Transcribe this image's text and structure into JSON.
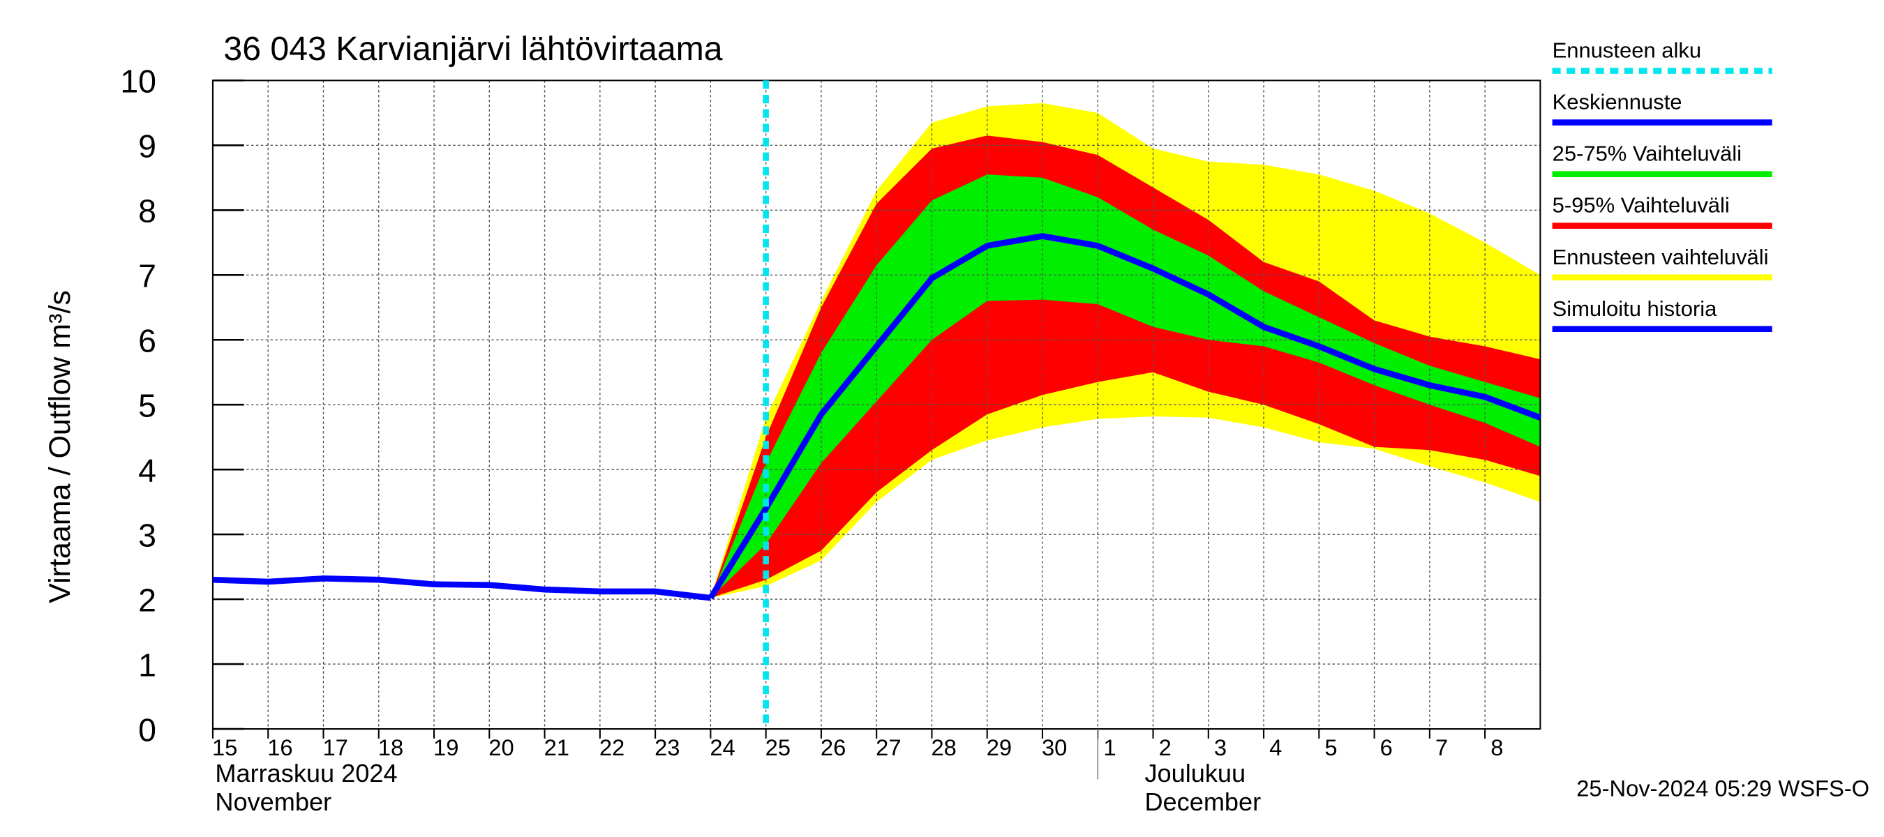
{
  "chart_data": {
    "type": "line",
    "title": "36 043 Karvianjärvi lähtövirtaama",
    "y_label": "Virtaama / Outflow   m³/s",
    "footer": "25-Nov-2024 05:29 WSFS-O",
    "month_labels": [
      {
        "x": "2024-11-15",
        "lines": [
          "Marraskuu 2024",
          "November"
        ]
      },
      {
        "x": "2024-12-02",
        "lines": [
          "Joulukuu",
          "December"
        ]
      }
    ],
    "x": [
      "2024-11-15",
      "2024-11-16",
      "2024-11-17",
      "2024-11-18",
      "2024-11-19",
      "2024-11-20",
      "2024-11-21",
      "2024-11-22",
      "2024-11-23",
      "2024-11-24",
      "2024-11-25",
      "2024-11-26",
      "2024-11-27",
      "2024-11-28",
      "2024-11-29",
      "2024-11-30",
      "2024-12-01",
      "2024-12-02",
      "2024-12-03",
      "2024-12-04",
      "2024-12-05",
      "2024-12-06",
      "2024-12-07",
      "2024-12-08",
      "2024-12-09"
    ],
    "xlim": [
      "2024-11-15",
      "2024-12-09"
    ],
    "xticks": [
      {
        "value": "2024-11-15",
        "label": "15"
      },
      {
        "value": "2024-11-16",
        "label": "16"
      },
      {
        "value": "2024-11-17",
        "label": "17"
      },
      {
        "value": "2024-11-18",
        "label": "18"
      },
      {
        "value": "2024-11-19",
        "label": "19"
      },
      {
        "value": "2024-11-20",
        "label": "20"
      },
      {
        "value": "2024-11-21",
        "label": "21"
      },
      {
        "value": "2024-11-22",
        "label": "22"
      },
      {
        "value": "2024-11-23",
        "label": "23"
      },
      {
        "value": "2024-11-24",
        "label": "24"
      },
      {
        "value": "2024-11-25",
        "label": "25"
      },
      {
        "value": "2024-11-26",
        "label": "26"
      },
      {
        "value": "2024-11-27",
        "label": "27"
      },
      {
        "value": "2024-11-28",
        "label": "28"
      },
      {
        "value": "2024-11-29",
        "label": "29"
      },
      {
        "value": "2024-11-30",
        "label": "30"
      },
      {
        "value": "2024-12-01",
        "label": "1"
      },
      {
        "value": "2024-12-02",
        "label": "2"
      },
      {
        "value": "2024-12-03",
        "label": "3"
      },
      {
        "value": "2024-12-04",
        "label": "4"
      },
      {
        "value": "2024-12-05",
        "label": "5"
      },
      {
        "value": "2024-12-06",
        "label": "6"
      },
      {
        "value": "2024-12-07",
        "label": "7"
      },
      {
        "value": "2024-12-08",
        "label": "8"
      }
    ],
    "ylim": [
      0,
      10
    ],
    "yticks": [
      0,
      1,
      2,
      3,
      4,
      5,
      6,
      7,
      8,
      9,
      10
    ],
    "grid": true,
    "forecast_start": {
      "name": "Ennusteen alku",
      "color": "#00e5ee",
      "x": "2024-11-25"
    },
    "series": [
      {
        "name": "Keskiennuste",
        "color": "#0000ff",
        "values": [
          null,
          null,
          null,
          null,
          null,
          null,
          null,
          null,
          null,
          2.02,
          3.4,
          4.85,
          5.9,
          6.95,
          7.45,
          7.6,
          7.45,
          7.1,
          6.7,
          6.2,
          5.9,
          5.55,
          5.3,
          5.12,
          4.8
        ]
      },
      {
        "name": "25-75% Vaihteluväli",
        "color": "#00ee00",
        "upper": [
          null,
          null,
          null,
          null,
          null,
          null,
          null,
          null,
          null,
          2.02,
          4.1,
          5.8,
          7.15,
          8.15,
          8.55,
          8.5,
          8.2,
          7.7,
          7.3,
          6.75,
          6.35,
          5.95,
          5.6,
          5.35,
          5.1
        ],
        "lower": [
          null,
          null,
          null,
          null,
          null,
          null,
          null,
          null,
          null,
          2.02,
          2.85,
          4.1,
          5.05,
          6.0,
          6.6,
          6.62,
          6.55,
          6.2,
          6.0,
          5.9,
          5.65,
          5.3,
          5.0,
          4.72,
          4.35
        ]
      },
      {
        "name": "5-95% Vaihteluväli",
        "color": "#ff0000",
        "upper": [
          null,
          null,
          null,
          null,
          null,
          null,
          null,
          null,
          null,
          2.02,
          4.5,
          6.5,
          8.1,
          8.95,
          9.15,
          9.05,
          8.85,
          8.35,
          7.85,
          7.2,
          6.9,
          6.3,
          6.05,
          5.9,
          5.7
        ],
        "lower": [
          null,
          null,
          null,
          null,
          null,
          null,
          null,
          null,
          null,
          2.02,
          2.3,
          2.75,
          3.65,
          4.3,
          4.85,
          5.15,
          5.35,
          5.5,
          5.2,
          5.0,
          4.7,
          4.35,
          4.3,
          4.15,
          3.9
        ]
      },
      {
        "name": "Ennusteen vaihteluväli",
        "color": "#ffff00",
        "upper": [
          null,
          null,
          null,
          null,
          null,
          null,
          null,
          null,
          null,
          2.02,
          4.8,
          6.6,
          8.3,
          9.35,
          9.6,
          9.65,
          9.5,
          8.95,
          8.75,
          8.7,
          8.55,
          8.3,
          7.95,
          7.5,
          7.0
        ],
        "lower": [
          null,
          null,
          null,
          null,
          null,
          null,
          null,
          null,
          null,
          2.02,
          2.2,
          2.6,
          3.5,
          4.15,
          4.45,
          4.65,
          4.78,
          4.82,
          4.8,
          4.65,
          4.42,
          4.32,
          4.05,
          3.8,
          3.5
        ]
      },
      {
        "name": "Simuloitu historia",
        "color": "#0000ff",
        "values": [
          2.3,
          2.27,
          2.32,
          2.3,
          2.23,
          2.22,
          2.15,
          2.12,
          2.12,
          2.02,
          null,
          null,
          null,
          null,
          null,
          null,
          null,
          null,
          null,
          null,
          null,
          null,
          null,
          null,
          null
        ]
      }
    ]
  }
}
